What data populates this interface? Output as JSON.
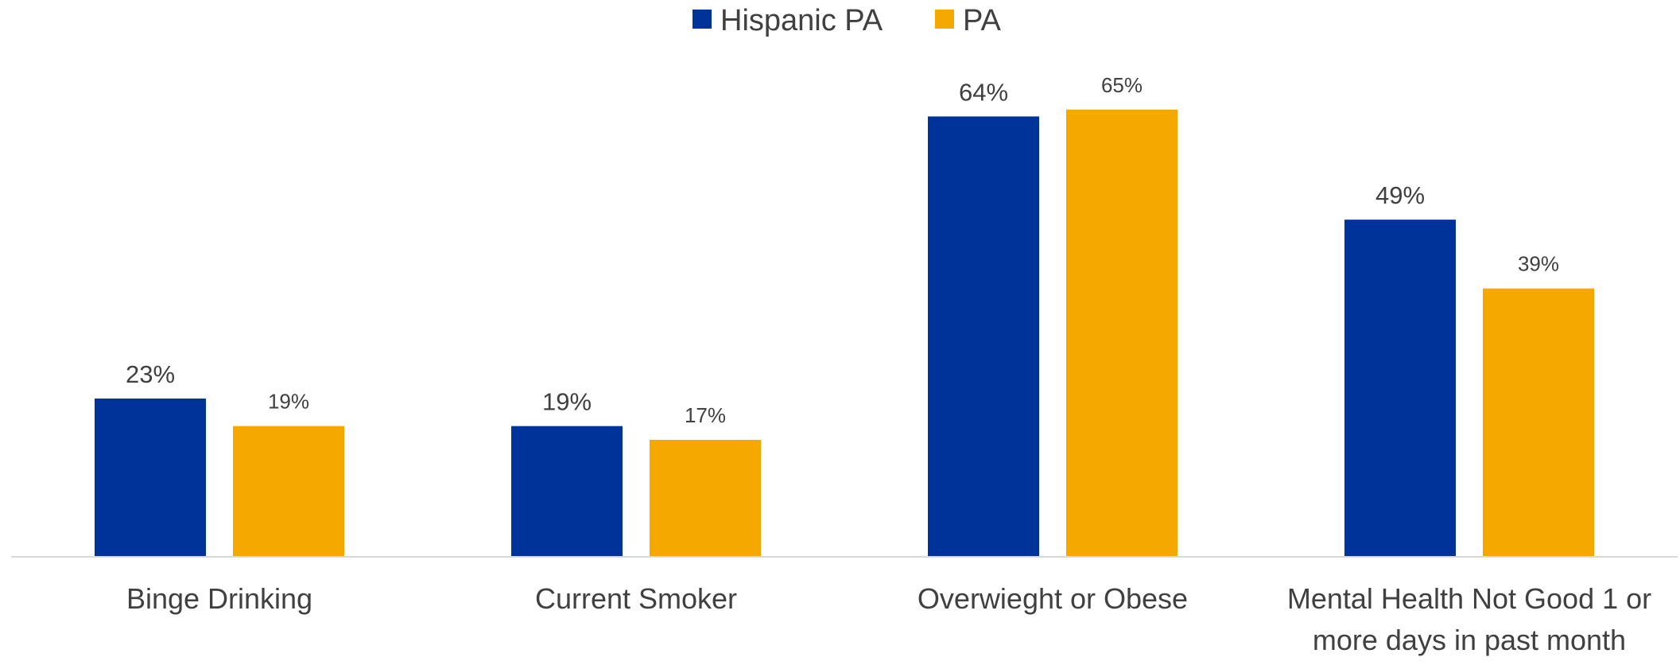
{
  "colors": {
    "hispanic_pa": "#003399",
    "pa": "#F5A800",
    "axis": "#d9d9d9",
    "text": "#404040"
  },
  "chart_data": {
    "type": "bar",
    "categories": [
      [
        "Binge Drinking"
      ],
      [
        "Current Smoker"
      ],
      [
        "Overwieght or Obese"
      ],
      [
        "Mental Health Not Good 1 or",
        "more days in past month"
      ]
    ],
    "series": [
      {
        "name": "Hispanic PA",
        "values": [
          23,
          19,
          64,
          49
        ],
        "labels": [
          "23%",
          "19%",
          "64%",
          "49%"
        ],
        "color": "#003399"
      },
      {
        "name": "PA",
        "values": [
          19,
          17,
          65,
          39
        ],
        "labels": [
          "19%",
          "17%",
          "65%",
          "39%"
        ],
        "color": "#F5A800"
      }
    ],
    "title": "",
    "xlabel": "",
    "ylabel": "",
    "ylim": [
      0,
      70
    ],
    "grid": false,
    "legend_position": "top-center"
  }
}
